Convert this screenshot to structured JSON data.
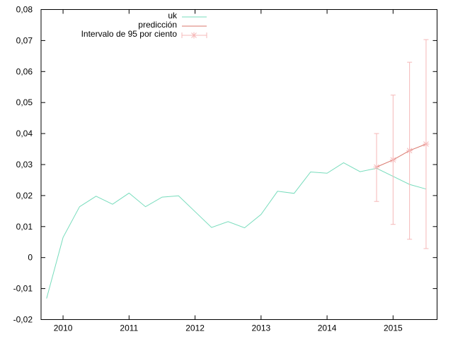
{
  "chart_data": {
    "type": "line",
    "title": "",
    "xlabel": "",
    "ylabel": "",
    "xlim": [
      2009.6667,
      2015.6667
    ],
    "ylim": [
      -0.02,
      0.08
    ],
    "grid": false,
    "legend_position": "top-center",
    "x_ticks": [
      {
        "value": 2010,
        "label": "2010"
      },
      {
        "value": 2011,
        "label": "2011"
      },
      {
        "value": 2012,
        "label": "2012"
      },
      {
        "value": 2013,
        "label": "2013"
      },
      {
        "value": 2014,
        "label": "2014"
      },
      {
        "value": 2015,
        "label": "2015"
      }
    ],
    "y_ticks": [
      {
        "value": -0.02,
        "label": "-0,02"
      },
      {
        "value": -0.01,
        "label": "-0,01"
      },
      {
        "value": 0,
        "label": "0"
      },
      {
        "value": 0.01,
        "label": "0,01"
      },
      {
        "value": 0.02,
        "label": "0,02"
      },
      {
        "value": 0.03,
        "label": "0,03"
      },
      {
        "value": 0.04,
        "label": "0,04"
      },
      {
        "value": 0.05,
        "label": "0,05"
      },
      {
        "value": 0.06,
        "label": "0,06"
      },
      {
        "value": 0.07,
        "label": "0,07"
      },
      {
        "value": 0.08,
        "label": "0,08"
      }
    ],
    "series": [
      {
        "name": "uk",
        "style": "line",
        "color": "#77dcbc",
        "x": [
          2009.75,
          2010.0,
          2010.25,
          2010.5,
          2010.75,
          2011.0,
          2011.25,
          2011.5,
          2011.75,
          2012.0,
          2012.25,
          2012.5,
          2012.75,
          2013.0,
          2013.25,
          2013.5,
          2013.75,
          2014.0,
          2014.25,
          2014.5,
          2014.75,
          2015.0,
          2015.25,
          2015.5
        ],
        "y": [
          -0.0132,
          0.0065,
          0.0164,
          0.0198,
          0.0172,
          0.0208,
          0.0164,
          0.0195,
          0.0199,
          0.0148,
          0.0097,
          0.0116,
          0.0096,
          0.0139,
          0.0214,
          0.0207,
          0.0276,
          0.0272,
          0.0306,
          0.0277,
          0.0288,
          0.0262,
          0.0236,
          0.0221
        ]
      },
      {
        "name": "predicción",
        "style": "line",
        "color": "#d9776c",
        "x": [
          2014.75,
          2015.0,
          2015.25,
          2015.5
        ],
        "y": [
          0.0292,
          0.0315,
          0.0345,
          0.0366
        ]
      },
      {
        "name": "Intervalo de 95 por ciento",
        "style": "errorbars",
        "color": "#f5b8b8",
        "x": [
          2014.75,
          2015.0,
          2015.25,
          2015.5
        ],
        "y": [
          0.0292,
          0.0315,
          0.0345,
          0.0366
        ],
        "low": [
          0.0181,
          0.0107,
          0.0059,
          0.0029
        ],
        "high": [
          0.04,
          0.0524,
          0.063,
          0.0703
        ]
      }
    ]
  }
}
